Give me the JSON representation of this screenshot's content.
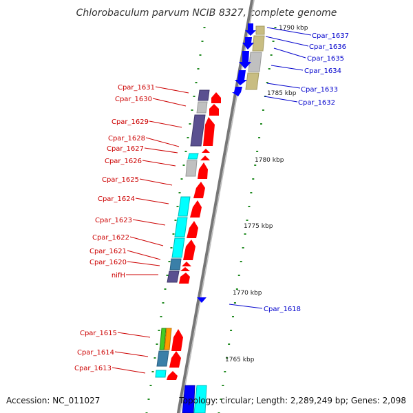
{
  "title": "Chlorobaculum parvum NCIB 8327, complete genome",
  "footer": {
    "accession": "Accession: NC_011027",
    "summary": "Topology: circular; Length: 2,289,249 bp; Genes: 2,098"
  },
  "ruler": [
    {
      "pos": 1790,
      "label": "1790 kbp"
    },
    {
      "pos": 1785,
      "label": "1785 kbp"
    },
    {
      "pos": 1780,
      "label": "1780 kbp"
    },
    {
      "pos": 1775,
      "label": "1775 kbp"
    },
    {
      "pos": 1770,
      "label": "1770 kbp"
    },
    {
      "pos": 1765,
      "label": "1765 kbp"
    }
  ],
  "genes": [
    {
      "name": "Cpar_1637",
      "strand": "minus"
    },
    {
      "name": "Cpar_1636",
      "strand": "minus"
    },
    {
      "name": "Cpar_1635",
      "strand": "minus"
    },
    {
      "name": "Cpar_1634",
      "strand": "minus"
    },
    {
      "name": "Cpar_1633",
      "strand": "minus"
    },
    {
      "name": "Cpar_1632",
      "strand": "minus"
    },
    {
      "name": "Cpar_1631",
      "strand": "plus"
    },
    {
      "name": "Cpar_1630",
      "strand": "plus"
    },
    {
      "name": "Cpar_1629",
      "strand": "plus"
    },
    {
      "name": "Cpar_1628",
      "strand": "plus"
    },
    {
      "name": "Cpar_1627",
      "strand": "plus"
    },
    {
      "name": "Cpar_1626",
      "strand": "plus"
    },
    {
      "name": "Cpar_1625",
      "strand": "plus"
    },
    {
      "name": "Cpar_1624",
      "strand": "plus"
    },
    {
      "name": "Cpar_1623",
      "strand": "plus"
    },
    {
      "name": "Cpar_1622",
      "strand": "plus"
    },
    {
      "name": "Cpar_1621",
      "strand": "plus"
    },
    {
      "name": "Cpar_1620",
      "strand": "plus"
    },
    {
      "name": "nifH",
      "strand": "plus"
    },
    {
      "name": "Cpar_1618",
      "strand": "minus"
    },
    {
      "name": "Cpar_1615",
      "strand": "plus"
    },
    {
      "name": "Cpar_1614",
      "strand": "plus"
    },
    {
      "name": "Cpar_1613",
      "strand": "plus"
    }
  ],
  "colors": {
    "plus_label": "#cc0000",
    "minus_label": "#0000cc",
    "plus_arrow": "#ff0000",
    "minus_arrow": "#0000ff",
    "backbone": "#888888",
    "tick": "#228b22"
  }
}
